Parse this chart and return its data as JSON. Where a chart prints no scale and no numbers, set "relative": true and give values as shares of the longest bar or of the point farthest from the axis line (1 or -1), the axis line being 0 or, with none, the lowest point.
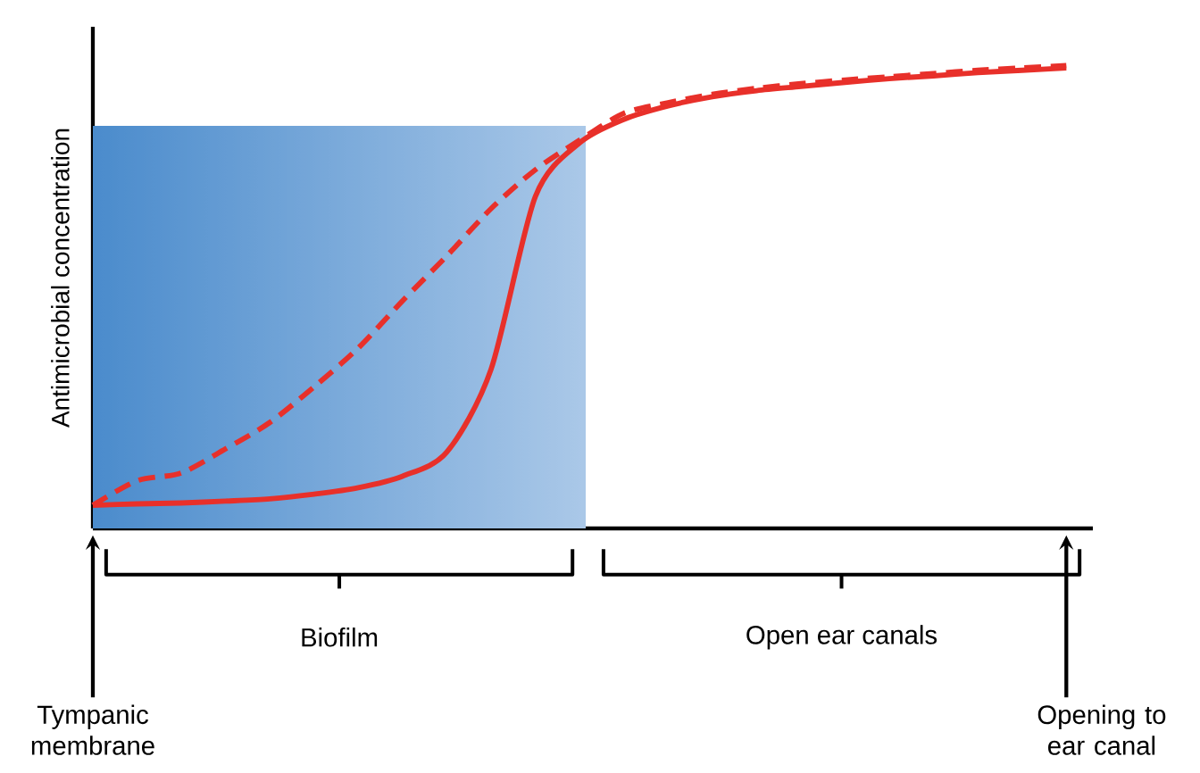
{
  "chart_data": {
    "type": "line",
    "relative": true,
    "ylabel": "Antimicrobial concentration",
    "categories": [
      null,
      null,
      null,
      null,
      null,
      null,
      null,
      null,
      null,
      null,
      null,
      null,
      null,
      null,
      null,
      null,
      null,
      null,
      null,
      null,
      null,
      null,
      null
    ],
    "series": [
      {
        "color": "#e8302a",
        "line_style": "solid",
        "values": [
          0.05,
          0.053,
          0.055,
          0.059,
          0.064,
          0.074,
          0.088,
          0.113,
          0.165,
          0.344,
          0.717,
          0.833,
          0.884,
          0.913,
          0.933,
          0.946,
          0.955,
          0.964,
          0.972,
          0.978,
          0.985,
          0.99,
          0.995
        ]
      },
      {
        "color": "#e8302a",
        "line_style": "dashed",
        "values": [
          0.05,
          0.103,
          0.12,
          0.172,
          0.229,
          0.306,
          0.39,
          0.492,
          0.589,
          0.691,
          0.775,
          0.839,
          0.897,
          0.92,
          0.938,
          0.951,
          0.961,
          0.969,
          0.976,
          0.983,
          0.99,
          0.995,
          1
        ]
      }
    ],
    "annotations": [
      "Biofilm",
      "Open ear canals",
      "Tympanic membrane",
      "Opening to ear canal"
    ],
    "marker": "none"
  }
}
